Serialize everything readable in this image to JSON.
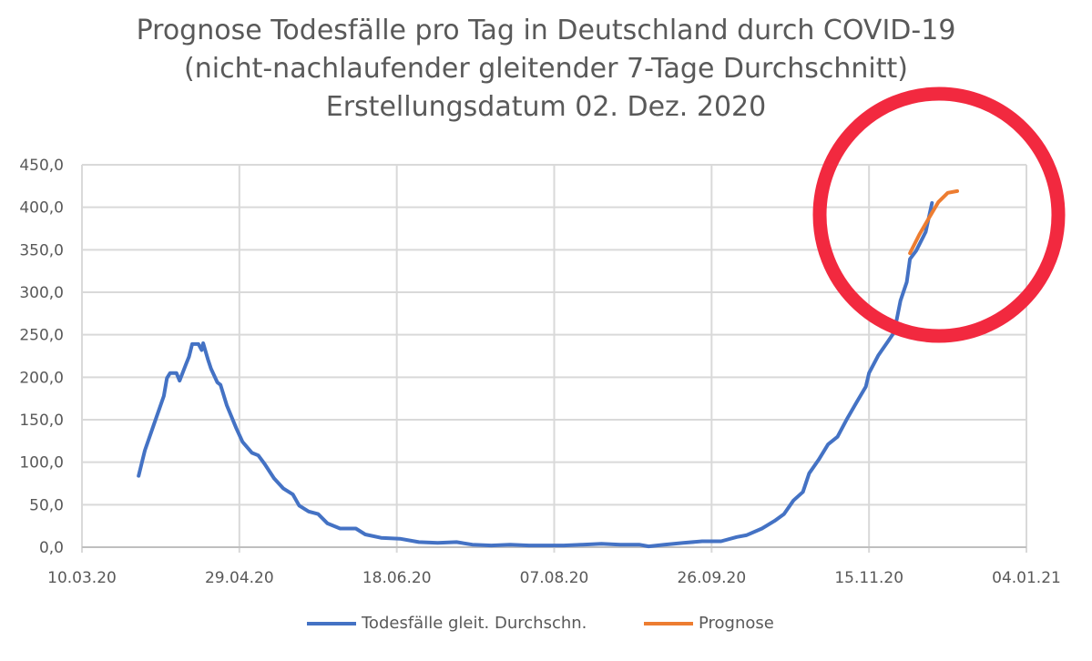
{
  "chart_data": {
    "type": "line",
    "title": [
      "Prognose Todesfälle pro Tag in Deutschland durch COVID-19",
      "(nicht-nachlaufender gleitender 7-Tage Durchschnitt)",
      "Erstellungsdatum 02. Dez. 2020"
    ],
    "xlabel": "",
    "ylabel": "",
    "xlim": [
      0,
      300
    ],
    "x_ticks": [
      0,
      50,
      100,
      150,
      200,
      250,
      300
    ],
    "x_tick_labels": [
      "10.03.20",
      "29.04.20",
      "18.06.20",
      "07.08.20",
      "26.09.20",
      "15.11.20",
      "04.01.21"
    ],
    "ylim": [
      0,
      450
    ],
    "y_ticks": [
      0,
      50,
      100,
      150,
      200,
      250,
      300,
      350,
      400,
      450
    ],
    "y_tick_labels": [
      "0,0",
      "50,0",
      "100,0",
      "150,0",
      "200,0",
      "250,0",
      "300,0",
      "350,0",
      "400,0",
      "450,0"
    ],
    "grid": true,
    "legend_position": "bottom",
    "series": [
      {
        "name": "Todesfälle gleit. Durchschn.",
        "color": "#4472C4",
        "x": [
          18,
          20,
          23,
          26,
          27,
          28,
          30,
          31,
          33,
          34,
          35,
          37,
          38,
          38.5,
          40,
          41,
          43,
          44,
          46,
          49,
          51,
          54,
          56,
          58,
          61,
          64,
          67,
          69,
          72,
          75,
          78,
          82,
          87,
          90,
          95,
          101,
          107,
          113,
          119,
          124,
          130,
          136,
          142,
          148,
          153,
          159,
          165,
          171,
          177,
          180,
          185,
          191,
          197,
          203,
          208,
          211,
          216,
          220,
          223,
          226,
          229,
          231,
          234,
          237,
          240,
          243,
          246,
          249,
          250,
          253,
          256,
          258,
          260,
          262,
          263,
          265,
          268,
          270
        ],
        "y": [
          84,
          114,
          146,
          178,
          199,
          205,
          205,
          196,
          215,
          224,
          239,
          239,
          232,
          240,
          221,
          210,
          194,
          191,
          167,
          140,
          124,
          111,
          108,
          98,
          81,
          69,
          62,
          49,
          42,
          39,
          28,
          22,
          22,
          15,
          11,
          10,
          6,
          5,
          6,
          3,
          2,
          3,
          2,
          2,
          2,
          3,
          4,
          3,
          3,
          1,
          3,
          5,
          7,
          7,
          12,
          14,
          22,
          31,
          39,
          55,
          65,
          87,
          103,
          121,
          130,
          151,
          170,
          189,
          205,
          226,
          242,
          253,
          290,
          312,
          339,
          349,
          371,
          405
        ]
      },
      {
        "name": "Prognose",
        "color": "#ED7D31",
        "x": [
          263,
          266,
          269,
          272,
          275,
          278
        ],
        "y": [
          346,
          368,
          387,
          406,
          417,
          419
        ]
      }
    ],
    "annotation": {
      "shape": "circle",
      "color": "#F2293F"
    }
  }
}
